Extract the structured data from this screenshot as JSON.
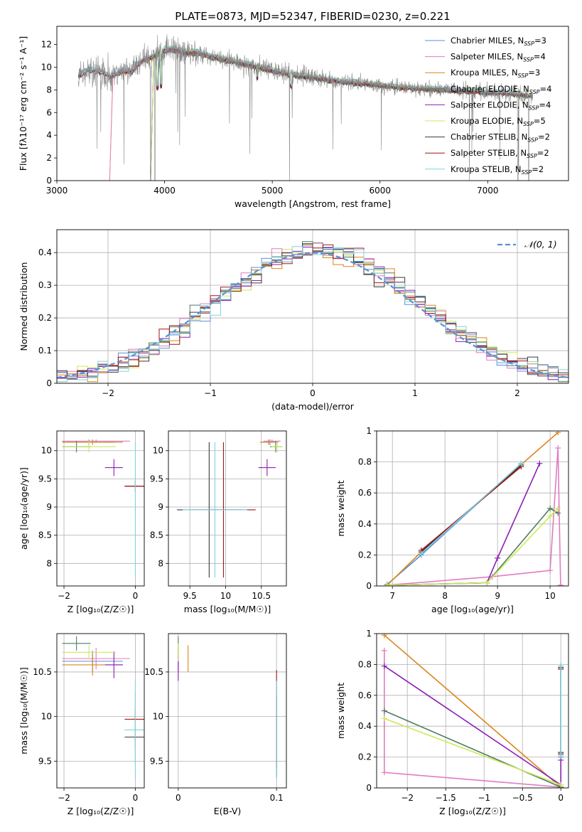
{
  "title": "PLATE=0873, MJD=52347, FIBERID=0230, z=0.221",
  "colors": {
    "chabrier_miles": "#5b8fd6",
    "salpeter_miles": "#e07cc2",
    "kroupa_miles": "#d9861b",
    "chabrier_elodie": "#4f7c63",
    "salpeter_elodie": "#8b1fb5",
    "kroupa_elodie": "#cde85a",
    "chabrier_stelib": "#3a3a3a",
    "salpeter_stelib": "#a01515",
    "kroupa_stelib": "#7fd4dc",
    "data": "#888888",
    "normal": "#5a8fd8"
  },
  "chart_data": [
    {
      "id": "spectrum",
      "type": "line",
      "xlabel": "wavelength [Angstrom, rest frame]",
      "ylabel": "Flux [fλ10⁻¹⁷ erg cm⁻² s⁻¹ A⁻¹]",
      "xlim": [
        3000,
        7750
      ],
      "ylim": [
        0,
        13.6
      ],
      "xticks": [
        3000,
        4000,
        5000,
        6000,
        7000
      ],
      "yticks": [
        0,
        2,
        4,
        6,
        8,
        10,
        12
      ],
      "grid": false,
      "legend_position": "top-right",
      "continuum": {
        "x": [
          3200,
          3300,
          3400,
          3500,
          3600,
          3700,
          3800,
          3900,
          4000,
          4100,
          4200,
          4300,
          4400,
          4500,
          4600,
          4800,
          5000,
          5200,
          5400,
          5600,
          5800,
          6000,
          6200,
          6400,
          6600,
          6800,
          7000,
          7200,
          7400
        ],
        "y": [
          9.3,
          9.8,
          9.6,
          9.2,
          9.6,
          9.7,
          10.6,
          11.0,
          11.5,
          11.6,
          11.3,
          11.3,
          11.0,
          10.8,
          10.6,
          10.2,
          9.7,
          9.3,
          9.1,
          8.8,
          8.6,
          8.4,
          8.2,
          8.1,
          8.0,
          7.9,
          7.8,
          7.7,
          7.5
        ]
      },
      "legend": [
        {
          "label": "Chabrier MILES, N",
          "sub": "SSP",
          "value": "3",
          "color": "#5b8fd6"
        },
        {
          "label": "Salpeter MILES, N",
          "sub": "SSP",
          "value": "4",
          "color": "#e07cc2"
        },
        {
          "label": "Kroupa MILES, N",
          "sub": "SSP",
          "value": "3",
          "color": "#d9861b"
        },
        {
          "label": "Chabrier ELODIE, N",
          "sub": "SSP",
          "value": "4",
          "color": "#4f7c63"
        },
        {
          "label": "Salpeter ELODIE, N",
          "sub": "SSP",
          "value": "4",
          "color": "#8b1fb5"
        },
        {
          "label": "Kroupa ELODIE, N",
          "sub": "SSP",
          "value": "5",
          "color": "#cde85a"
        },
        {
          "label": "Chabrier STELIB, N",
          "sub": "SSP",
          "value": "2",
          "color": "#3a3a3a"
        },
        {
          "label": "Salpeter STELIB, N",
          "sub": "SSP",
          "value": "2",
          "color": "#a01515"
        },
        {
          "label": "Kroupa STELIB, N",
          "sub": "SSP",
          "value": "2",
          "color": "#7fd4dc"
        }
      ]
    },
    {
      "id": "residuals",
      "type": "line",
      "xlabel": "(data-model)/error",
      "ylabel": "Normed distribution",
      "xlim": [
        -2.5,
        2.5
      ],
      "ylim": [
        0,
        0.47
      ],
      "xticks": [
        -2,
        -1,
        0,
        1,
        2
      ],
      "yticks": [
        0.0,
        0.1,
        0.2,
        0.3,
        0.4
      ],
      "grid": true,
      "legend_position": "top-right",
      "legend_label": "𝒩(0, 1)",
      "bin_width": 0.1
    },
    {
      "id": "age_vs_z",
      "type": "scatter",
      "xlabel": "Z [log₁₀(Z/Z☉)]",
      "ylabel": "age  [log₁₀(age/yr)]",
      "xlim": [
        -2.2,
        0.25
      ],
      "ylim": [
        7.6,
        10.35
      ],
      "xticks": [
        -2,
        0
      ],
      "yticks": [
        8.0,
        8.5,
        9.0,
        9.5,
        10.0
      ],
      "grid": true,
      "points": [
        {
          "c": "chabrier_miles",
          "x": -1.3,
          "xe": 0.75,
          "y": 10.15,
          "ye": 0.05
        },
        {
          "c": "salpeter_miles",
          "x": -1.1,
          "xe": 0.95,
          "y": 10.17,
          "ye": 0.03
        },
        {
          "c": "kroupa_miles",
          "x": -1.2,
          "xe": 0.85,
          "y": 10.15,
          "ye": 0.05
        },
        {
          "c": "chabrier_elodie",
          "x": -1.65,
          "xe": 0.4,
          "y": 10.07,
          "ye": 0.1
        },
        {
          "c": "salpeter_elodie",
          "x": -0.6,
          "xe": 0.25,
          "y": 9.7,
          "ye": 0.15
        },
        {
          "c": "kroupa_elodie",
          "x": -1.3,
          "xe": 0.75,
          "y": 10.07,
          "ye": 0.1
        },
        {
          "c": "chabrier_stelib",
          "x": 0.0,
          "xe": 0.3,
          "y": 9.37,
          "ye": 0.1
        },
        {
          "c": "salpeter_stelib",
          "x": 0.0,
          "xe": 0.3,
          "y": 9.37,
          "ye": 0.1
        },
        {
          "c": "kroupa_stelib",
          "x": 0.0,
          "xe": 0.02,
          "y": 8.95,
          "ye": 1.2
        }
      ]
    },
    {
      "id": "age_vs_mass",
      "type": "scatter",
      "xlabel": "mass [log₁₀(M/M☉)]",
      "ylabel": "",
      "xlim": [
        9.2,
        10.85
      ],
      "ylim": [
        7.6,
        10.35
      ],
      "xticks": [
        9.5,
        10.0,
        10.5
      ],
      "yticks": [
        8.0,
        8.5,
        9.0,
        9.5,
        10.0
      ],
      "grid": true,
      "points": [
        {
          "c": "chabrier_miles",
          "x": 10.62,
          "xe": 0.12,
          "y": 10.15,
          "ye": 0.05
        },
        {
          "c": "salpeter_miles",
          "x": 10.65,
          "xe": 0.12,
          "y": 10.17,
          "ye": 0.03
        },
        {
          "c": "kroupa_miles",
          "x": 10.6,
          "xe": 0.12,
          "y": 10.15,
          "ye": 0.05
        },
        {
          "c": "chabrier_elodie",
          "x": 10.7,
          "xe": 0.08,
          "y": 10.07,
          "ye": 0.1
        },
        {
          "c": "salpeter_elodie",
          "x": 10.58,
          "xe": 0.12,
          "y": 9.7,
          "ye": 0.15
        },
        {
          "c": "kroupa_elodie",
          "x": 10.72,
          "xe": 0.08,
          "y": 10.07,
          "ye": 0.1
        },
        {
          "c": "chabrier_stelib",
          "x": 9.77,
          "xe": 0.45,
          "y": 8.95,
          "ye": 1.2
        },
        {
          "c": "salpeter_stelib",
          "x": 9.97,
          "xe": 0.45,
          "y": 8.95,
          "ye": 1.2
        },
        {
          "c": "kroupa_stelib",
          "x": 9.85,
          "xe": 0.45,
          "y": 8.95,
          "ye": 1.2
        }
      ]
    },
    {
      "id": "mass_weight_vs_age",
      "type": "line",
      "xlabel": "age  [log₁₀(age/yr)]",
      "ylabel": "mass weight",
      "xlim": [
        6.7,
        10.35
      ],
      "ylim": [
        0,
        1.0
      ],
      "xticks": [
        7,
        8,
        9,
        10
      ],
      "yticks": [
        0.0,
        0.2,
        0.4,
        0.6,
        0.8,
        1.0
      ],
      "grid": true,
      "series": [
        {
          "c": "chabrier_miles",
          "x": [
            6.9,
            7.55,
            9.45
          ],
          "y": [
            0.01,
            0.2,
            0.79
          ]
        },
        {
          "c": "salpeter_miles",
          "x": [
            6.9,
            8.9,
            10.0,
            10.15,
            10.2
          ],
          "y": [
            0.005,
            0.06,
            0.1,
            0.89,
            0.005
          ]
        },
        {
          "c": "kroupa_miles",
          "x": [
            6.9,
            7.55,
            10.15
          ],
          "y": [
            0.005,
            0.22,
            0.99
          ]
        },
        {
          "c": "chabrier_elodie",
          "x": [
            6.9,
            8.8,
            10.0,
            10.15
          ],
          "y": [
            0.005,
            0.02,
            0.5,
            0.47
          ]
        },
        {
          "c": "salpeter_elodie",
          "x": [
            6.9,
            8.8,
            9.0,
            9.8
          ],
          "y": [
            0.005,
            0.02,
            0.18,
            0.79
          ]
        },
        {
          "c": "kroupa_elodie",
          "x": [
            6.9,
            8.8,
            10.0,
            10.15
          ],
          "y": [
            0.005,
            0.02,
            0.45,
            0.5
          ]
        },
        {
          "c": "chabrier_stelib",
          "x": [
            7.55,
            9.45
          ],
          "y": [
            0.22,
            0.78
          ]
        },
        {
          "c": "salpeter_stelib",
          "x": [
            7.55,
            9.45
          ],
          "y": [
            0.23,
            0.77
          ]
        },
        {
          "c": "kroupa_stelib",
          "x": [
            7.55,
            9.45
          ],
          "y": [
            0.21,
            0.79
          ]
        }
      ]
    },
    {
      "id": "mass_vs_z",
      "type": "scatter",
      "xlabel": "Z [log₁₀(Z/Z☉)]",
      "ylabel": "mass [log₁₀(M/M☉)]",
      "xlim": [
        -2.2,
        0.25
      ],
      "ylim": [
        9.2,
        10.93
      ],
      "xticks": [
        -2,
        0
      ],
      "yticks": [
        9.5,
        10.0,
        10.5
      ],
      "grid": true,
      "points": [
        {
          "c": "chabrier_miles",
          "x": -1.2,
          "xe": 0.85,
          "y": 10.62,
          "ye": 0.12
        },
        {
          "c": "salpeter_miles",
          "x": -1.1,
          "xe": 0.95,
          "y": 10.65,
          "ye": 0.12
        },
        {
          "c": "kroupa_miles",
          "x": -1.2,
          "xe": 0.85,
          "y": 10.58,
          "ye": 0.12
        },
        {
          "c": "chabrier_elodie",
          "x": -1.65,
          "xe": 0.4,
          "y": 10.82,
          "ye": 0.08
        },
        {
          "c": "salpeter_elodie",
          "x": -0.6,
          "xe": 0.25,
          "y": 10.58,
          "ye": 0.15
        },
        {
          "c": "kroupa_elodie",
          "x": -1.3,
          "xe": 0.75,
          "y": 10.72,
          "ye": 0.08
        },
        {
          "c": "chabrier_stelib",
          "x": 0.0,
          "xe": 0.3,
          "y": 9.77,
          "ye": 0.3
        },
        {
          "c": "salpeter_stelib",
          "x": 0.0,
          "xe": 0.3,
          "y": 9.97,
          "ye": 0.3
        },
        {
          "c": "kroupa_stelib",
          "x": 0.0,
          "xe": 0.3,
          "y": 9.85,
          "ye": 0.55
        }
      ]
    },
    {
      "id": "mass_vs_ebv",
      "type": "scatter",
      "xlabel": "E(B-V)",
      "ylabel": "",
      "xlim": [
        -0.01,
        0.11
      ],
      "ylim": [
        9.2,
        10.93
      ],
      "xticks": [
        0.0,
        0.1
      ],
      "yticks": [
        9.5,
        10.0,
        10.5
      ],
      "grid": true,
      "points": [
        {
          "c": "chabrier_miles",
          "x": 0.0,
          "xe": 0,
          "y": 10.62,
          "ye": 0.12
        },
        {
          "c": "salpeter_miles",
          "x": 0.0,
          "xe": 0,
          "y": 10.65,
          "ye": 0.12
        },
        {
          "c": "kroupa_miles",
          "x": 0.01,
          "xe": 0,
          "y": 10.65,
          "ye": 0.15
        },
        {
          "c": "chabrier_elodie",
          "x": 0.0,
          "xe": 0,
          "y": 10.8,
          "ye": 0.1
        },
        {
          "c": "salpeter_elodie",
          "x": 0.0,
          "xe": 0,
          "y": 10.55,
          "ye": 0.15
        },
        {
          "c": "kroupa_elodie",
          "x": 0.0,
          "xe": 0,
          "y": 10.72,
          "ye": 0.1
        },
        {
          "c": "chabrier_stelib",
          "x": 0.1,
          "xe": 0,
          "y": 9.77,
          "ye": 0.45
        },
        {
          "c": "salpeter_stelib",
          "x": 0.1,
          "xe": 0,
          "y": 9.97,
          "ye": 0.55
        },
        {
          "c": "kroupa_stelib",
          "x": 0.1,
          "xe": 0,
          "y": 9.85,
          "ye": 0.55
        }
      ]
    },
    {
      "id": "mass_weight_vs_z",
      "type": "line",
      "xlabel": "Z [log₁₀(Z/Z☉)]",
      "ylabel": "mass weight",
      "xlim": [
        -2.4,
        0.1
      ],
      "ylim": [
        0,
        1.0
      ],
      "xticks": [
        -2.0,
        -1.5,
        -1.0,
        -0.5,
        0.0
      ],
      "yticks": [
        0.0,
        0.2,
        0.4,
        0.6,
        0.8,
        1.0
      ],
      "grid": true,
      "series": [
        {
          "c": "chabrier_miles",
          "x": [
            0.0,
            0.0
          ],
          "y": [
            0.2,
            0.79
          ]
        },
        {
          "c": "salpeter_miles",
          "x": [
            -2.3,
            -2.3,
            0.0
          ],
          "y": [
            0.89,
            0.1,
            0.005
          ]
        },
        {
          "c": "kroupa_miles",
          "x": [
            -2.3,
            0.0
          ],
          "y": [
            0.99,
            0.005
          ]
        },
        {
          "c": "chabrier_elodie",
          "x": [
            -2.3,
            0.0
          ],
          "y": [
            0.5,
            0.005
          ]
        },
        {
          "c": "salpeter_elodie",
          "x": [
            -2.3,
            0.0,
            0.0
          ],
          "y": [
            0.79,
            0.02,
            0.18
          ]
        },
        {
          "c": "kroupa_elodie",
          "x": [
            -2.3,
            0.0
          ],
          "y": [
            0.45,
            0.02
          ]
        },
        {
          "c": "chabrier_stelib",
          "x": [
            0.0,
            0.0
          ],
          "y": [
            0.22,
            0.78
          ]
        },
        {
          "c": "salpeter_stelib",
          "x": [
            0.0,
            0.0
          ],
          "y": [
            0.23,
            0.77
          ]
        },
        {
          "c": "kroupa_stelib",
          "x": [
            0.0,
            0.0
          ],
          "y": [
            0.21,
            0.79
          ]
        }
      ]
    }
  ]
}
